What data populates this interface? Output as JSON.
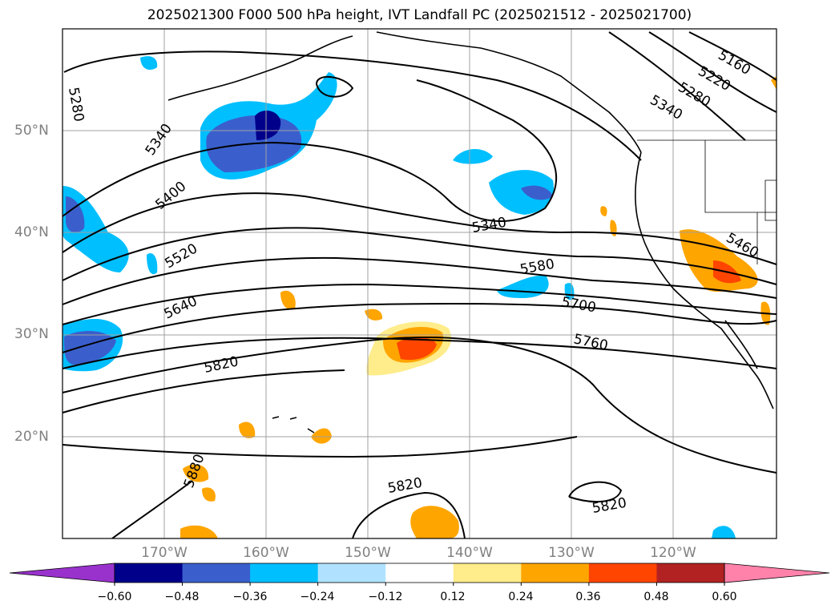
{
  "title": "2025021300 F000 500 hPa height, IVT Landfall PC (2025021512 - 2025021700)",
  "map": {
    "lat_labels": [
      "50°N",
      "40°N",
      "30°N",
      "20°N"
    ],
    "lon_labels": [
      "170°W",
      "160°W",
      "150°W",
      "140°W",
      "130°W",
      "120°W"
    ],
    "contour_labels": [
      "5280",
      "5340",
      "5400",
      "5520",
      "5640",
      "5820",
      "5340",
      "5580",
      "5700",
      "5760",
      "5160",
      "5220",
      "5280",
      "5340",
      "5460",
      "5880",
      "5820",
      "5820"
    ],
    "colors": {
      "contour": "#000000",
      "grid": "#a0a0a0",
      "coast": "#000000"
    }
  },
  "colorbar": {
    "ticks": [
      "−0.60",
      "−0.48",
      "−0.36",
      "−0.24",
      "−0.12",
      "0.12",
      "0.24",
      "0.36",
      "0.48",
      "0.60"
    ],
    "colors": [
      "#9932cc",
      "#00008b",
      "#3a5fcd",
      "#00bfff",
      "#b0e2ff",
      "#ffffff",
      "#ffec8b",
      "#ffa500",
      "#ff4500",
      "#b22222",
      "#ff82ab"
    ]
  }
}
